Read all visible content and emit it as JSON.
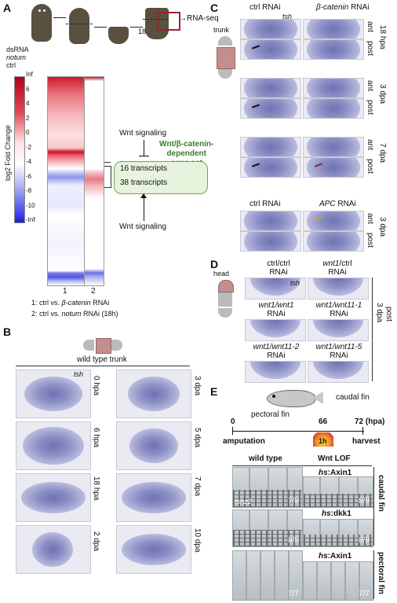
{
  "panelA": {
    "label": "A",
    "dsrna": "dsRNA",
    "notum": "notum",
    "ctrl": "ctrl",
    "time": "18h",
    "rnaseq": "→RNA-seq",
    "ylabel": "log2 Fold Change",
    "ticks": [
      "Inf",
      "6",
      "4",
      "2",
      "0",
      "-2",
      "-4",
      "-6",
      "-8",
      "-10",
      "-Inf"
    ],
    "cols": [
      "1",
      "2"
    ],
    "wnt_top": "Wnt signaling",
    "wnt_bottom": "Wnt signaling",
    "geneset_l1": "Wnt/β-catenin-",
    "geneset_l2": "dependent",
    "geneset_l3": "gene set",
    "box1": "16 transcripts",
    "box2": "38 transcripts",
    "legend1_pre": "1: ctrl vs. ",
    "legend1_it": "β-catenin",
    "legend1_post": " RNAi",
    "legend2_pre": "2: ctrl vs. ",
    "legend2_it": "notum",
    "legend2_post": " RNAi (18h)"
  },
  "panelB": {
    "label": "B",
    "title": "wild type trunk",
    "gene": "tsh",
    "left_times": [
      "0 hpa",
      "6 hpa",
      "18 hpa",
      "2 dpa"
    ],
    "right_times": [
      "3 dpa",
      "5 dpa",
      "7 dpa",
      "10 dpa"
    ]
  },
  "panelC": {
    "label": "C",
    "trunk": "trunk",
    "col1": "ctrl RNAi",
    "col2_it": "β-catenin",
    "col2_post": " RNAi",
    "gene": "tsh",
    "rows": [
      "18 hpa",
      "3 dpa",
      "7 dpa"
    ],
    "ant": "ant",
    "post": "post",
    "col3": "ctrl RNAi",
    "col4_it": "APC",
    "col4_post": " RNAi",
    "row4": "3 dpa"
  },
  "panelD": {
    "label": "D",
    "head": "head",
    "gene": "tsh",
    "c1l1": "ctrl/ctrl",
    "c1l2": "RNAi",
    "c2l1_it": "wnt1",
    "c2l1_post": "/ctrl",
    "c2l2": "RNAi",
    "c3l1_it": "wnt1/wnt1",
    "c3l2": "RNAi",
    "c4l1_it": "wnt1/wnt11-1",
    "c4l2": "RNAi",
    "c5l1_it": "wnt1/wnt11-2",
    "c5l2": "RNAi",
    "c6l1_it": "wnt1/wnt11-5",
    "c6l2": "RNAi",
    "side1": "3 dpa",
    "side2": "post"
  },
  "panelE": {
    "label": "E",
    "caudal": "caudal fin",
    "pectoral": "pectoral fin",
    "t0": "0",
    "t66": "66",
    "t72": "72 (hpa)",
    "amputation": "amputation",
    "harvest": "harvest",
    "heat": "1h",
    "col1": "wild type",
    "col2": "Wnt LOF",
    "hs1_pre": "hs",
    "hs1_post": ":Axin1",
    "hs2_pre": "hs",
    "hs2_post": ":dkk1",
    "hs3_pre": "hs",
    "hs3_post": ":Axin1",
    "gene": "tshz2",
    "fracs": [
      "7/8",
      "8/8",
      "8/8",
      "8/8",
      "7/7",
      "7/7"
    ],
    "side_caudal": "caudal fin",
    "side_pectoral": "pectoral fin"
  }
}
